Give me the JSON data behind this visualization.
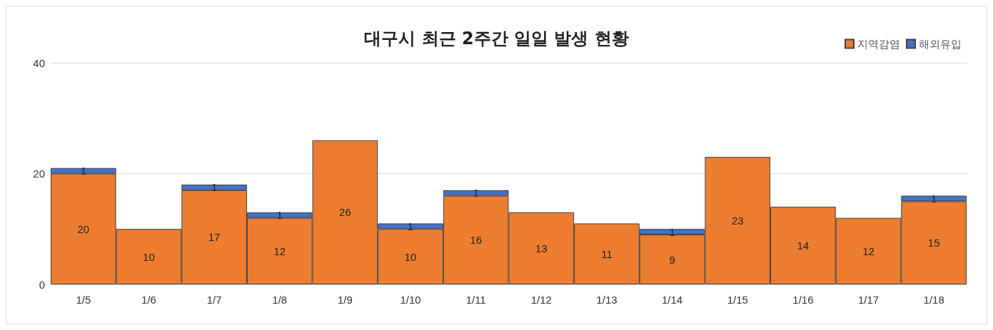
{
  "chart_data": {
    "type": "bar",
    "title": "대구시 최근 2주간 일일 발생 현황",
    "categories": [
      "1/5",
      "1/6",
      "1/7",
      "1/8",
      "1/9",
      "1/10",
      "1/11",
      "1/12",
      "1/13",
      "1/14",
      "1/15",
      "1/16",
      "1/17",
      "1/18"
    ],
    "series": [
      {
        "name": "지역감염",
        "color": "#ed7d31",
        "values": [
          20,
          10,
          17,
          12,
          26,
          10,
          16,
          13,
          11,
          9,
          23,
          14,
          12,
          15
        ]
      },
      {
        "name": "해외유입",
        "color": "#4472c4",
        "values": [
          1,
          null,
          1,
          1,
          null,
          1,
          1,
          null,
          null,
          1,
          null,
          null,
          null,
          1
        ]
      }
    ],
    "stacked": true,
    "ylim": [
      0,
      40
    ],
    "yticks": [
      0,
      20,
      40
    ],
    "grid": "y",
    "legend": "top right",
    "data_labels": true
  }
}
